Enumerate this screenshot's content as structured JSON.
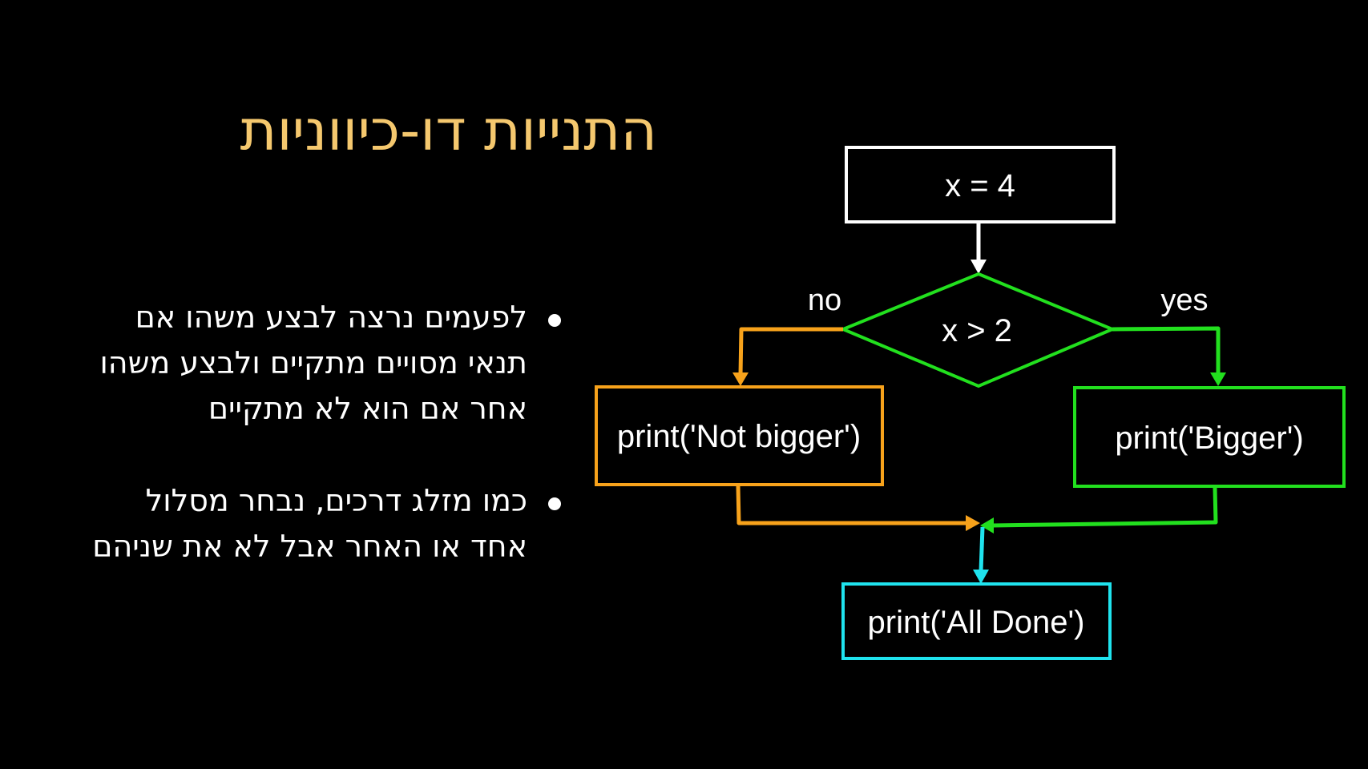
{
  "slide": {
    "title": "התנייות דו-כיווניות",
    "bullets": [
      "לפעמים נרצה לבצע משהו אם תנאי מסויים מתקיים ולבצע משהו אחר אם הוא לא מתקיים",
      "כמו מזלג דרכים, נבחר מסלול אחד או האחר אבל לא את שניהם"
    ]
  },
  "flowchart": {
    "nodes": {
      "assign": {
        "label": "x = 4",
        "color": "#FFFFFF"
      },
      "condition": {
        "label": "x > 2",
        "color": "#22E01E"
      },
      "no_branch": {
        "label": "print('Not bigger')",
        "color": "#F7A21B"
      },
      "yes_branch": {
        "label": "print('Bigger')",
        "color": "#22E01E"
      },
      "done": {
        "label": "print('All Done')",
        "color": "#1FE3EE"
      }
    },
    "edge_labels": {
      "no": "no",
      "yes": "yes"
    },
    "edge_colors": {
      "assign_to_condition": "#FFFFFF",
      "no_path": "#F7A21B",
      "yes_path": "#22E01E",
      "to_done": "#1FE3EE"
    }
  }
}
